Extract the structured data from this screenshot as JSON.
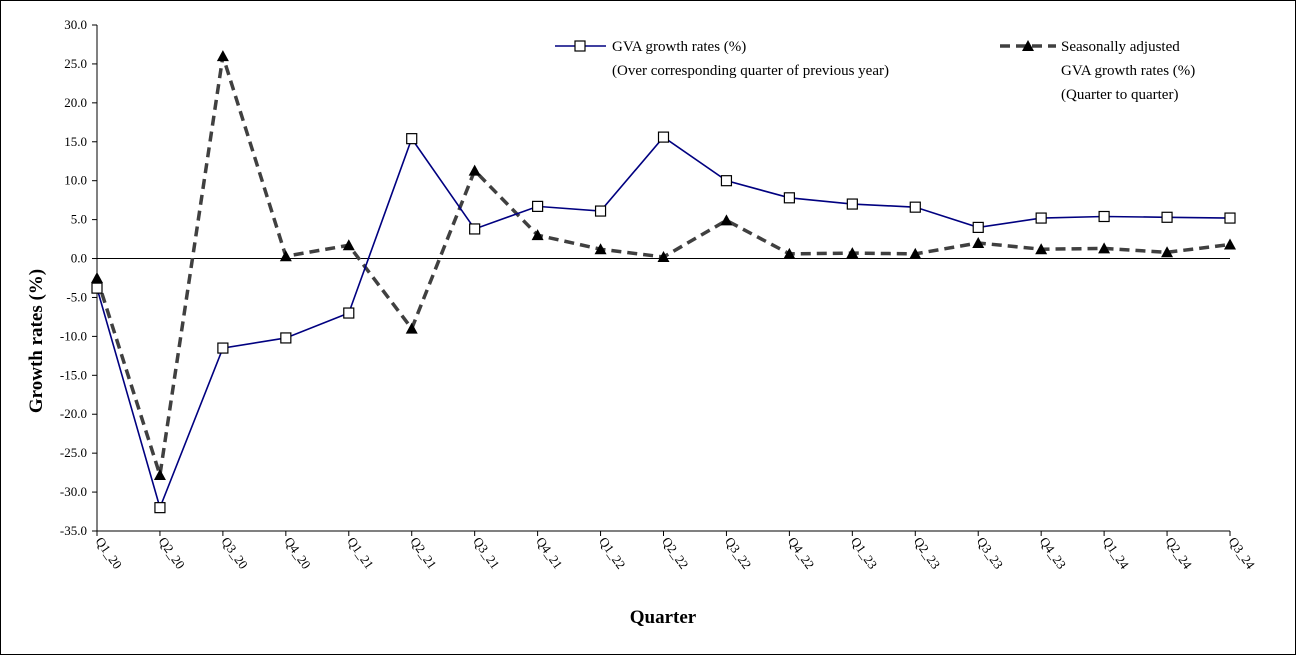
{
  "chart_data": {
    "type": "line",
    "categories": [
      "Q1_20",
      "Q2_20",
      "Q3_20",
      "Q4_20",
      "Q1_21",
      "Q2_21",
      "Q3_21",
      "Q4_21",
      "Q1_22",
      "Q2_22",
      "Q3_22",
      "Q4_22",
      "Q1_23",
      "Q2_23",
      "Q3_23",
      "Q4_23",
      "Q1_24",
      "Q2_24",
      "Q3_24"
    ],
    "series": [
      {
        "name": "GVA growth rates (%)",
        "name_line2": "(Over corresponding quarter of previous year)",
        "color": "#000080",
        "line_style": "solid",
        "marker": "hollow-square",
        "values": [
          -3.8,
          -32.0,
          -11.5,
          -10.2,
          -7.0,
          15.4,
          3.8,
          6.7,
          6.1,
          15.6,
          10.0,
          7.8,
          7.0,
          6.6,
          4.0,
          5.2,
          5.4,
          5.3,
          5.2
        ]
      },
      {
        "name": "Seasonally adjusted",
        "name_line2": "GVA growth rates (%)",
        "name_line3": "(Quarter to quarter)",
        "color": "#404040",
        "line_style": "dashed",
        "marker": "filled-triangle",
        "values": [
          -2.5,
          -27.8,
          26.0,
          0.3,
          1.7,
          -9.0,
          11.3,
          3.0,
          1.2,
          0.2,
          4.9,
          0.6,
          0.7,
          0.6,
          2.0,
          1.2,
          1.3,
          0.8,
          1.8
        ]
      }
    ],
    "xlabel": "Quarter",
    "ylabel": "Growth rates (%)",
    "ylim": [
      -35,
      30
    ],
    "y_step": 5,
    "ytick_labels": [
      "30.0",
      "25.0",
      "20.0",
      "15.0",
      "10.0",
      "5.0",
      "0.0",
      "-5.0",
      "-10.0",
      "-15.0",
      "-20.0",
      "-25.0",
      "-30.0",
      "-35.0"
    ],
    "grid": false,
    "legend_position": "top"
  }
}
